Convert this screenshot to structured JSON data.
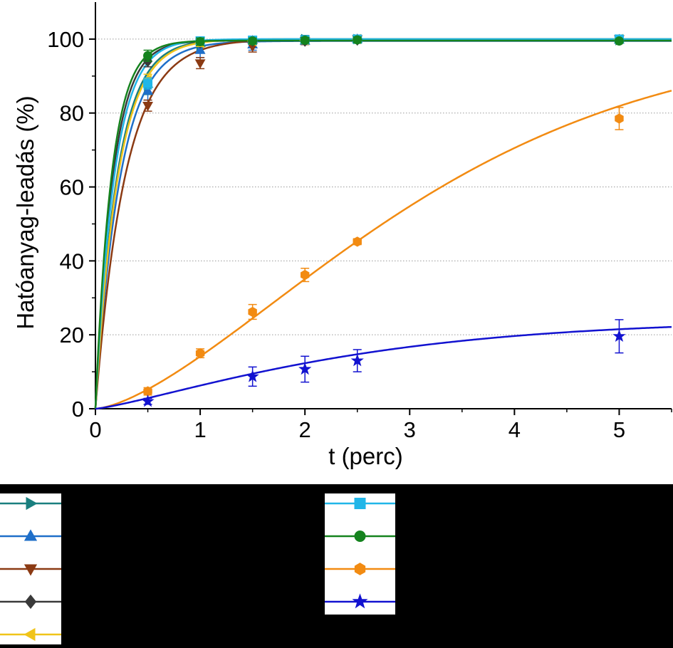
{
  "chart_data": {
    "type": "line",
    "title": "",
    "xlabel": "t (perc)",
    "ylabel": "Hatóanyag-leadás (%)",
    "xlim": [
      0,
      5.5
    ],
    "ylim": [
      0,
      110
    ],
    "xticks": [
      "0",
      "1",
      "2",
      "3",
      "4",
      "5"
    ],
    "yticks": [
      "0",
      "20",
      "40",
      "60",
      "80",
      "100"
    ],
    "grid": "horizontal dotted",
    "legend_placement": "below plot, two columns, labels not shown",
    "x": [
      0,
      0.5,
      1,
      1.5,
      2,
      2.5,
      5
    ],
    "series": [
      {
        "color": "#1a7f7f",
        "marker": "triangle-right",
        "values": [
          0,
          87,
          98,
          99.5,
          100,
          100,
          99.7
        ],
        "err": [
          0,
          2,
          1.5,
          1,
          1,
          0.8,
          0.5
        ]
      },
      {
        "color": "#1f6fc9",
        "marker": "triangle-up",
        "values": [
          0,
          86,
          97,
          98.5,
          99.5,
          100,
          99.8
        ],
        "err": [
          0,
          2.5,
          2,
          1.5,
          1,
          0.8,
          0.5
        ]
      },
      {
        "color": "#8b3a13",
        "marker": "triangle-down",
        "values": [
          0,
          82,
          93.5,
          98,
          99.5,
          100,
          100
        ],
        "err": [
          0,
          1.5,
          1.5,
          1.5,
          1,
          0.8,
          0.5
        ]
      },
      {
        "color": "#3a3a3a",
        "marker": "diamond",
        "values": [
          0,
          94,
          99,
          99.5,
          99.5,
          99.8,
          99.8
        ],
        "err": [
          0,
          1.5,
          1,
          0.8,
          0.8,
          0.8,
          0.5
        ]
      },
      {
        "color": "#f0c419",
        "marker": "triangle-left",
        "values": [
          0,
          89,
          99,
          99.5,
          99.7,
          100,
          100
        ],
        "err": [
          0,
          1.5,
          1,
          0.8,
          0.8,
          0.8,
          0.5
        ]
      },
      {
        "color": "#21b6e8",
        "marker": "square",
        "values": [
          0,
          88,
          99.5,
          99.7,
          99.8,
          100,
          100
        ],
        "err": [
          0,
          1.5,
          1,
          0.8,
          0.8,
          0.8,
          0.5
        ]
      },
      {
        "color": "#15831e",
        "marker": "circle",
        "values": [
          0,
          95.5,
          99.3,
          99.5,
          99.7,
          99.8,
          99.5
        ],
        "err": [
          0,
          1.5,
          1,
          0.8,
          0.8,
          0.8,
          0.5
        ]
      },
      {
        "color": "#f28b12",
        "marker": "hexagon",
        "values": [
          0,
          4.7,
          15,
          26.2,
          36.2,
          45.2,
          78.5
        ],
        "err": [
          0,
          1,
          1.2,
          2,
          1.8,
          0.8,
          3
        ]
      },
      {
        "color": "#1212d0",
        "marker": "star",
        "values": [
          0,
          2,
          null,
          8.7,
          10.7,
          13,
          19.6
        ],
        "err": [
          0,
          0.8,
          0,
          2.6,
          3.5,
          3,
          4.5
        ]
      }
    ],
    "fitted_curves": [
      {
        "series_index": 0,
        "kind": "exp",
        "plateau": 100,
        "rate": 4.8
      },
      {
        "series_index": 1,
        "kind": "exp",
        "plateau": 99.5,
        "rate": 4.2
      },
      {
        "series_index": 2,
        "kind": "exp",
        "plateau": 100,
        "rate": 3.5
      },
      {
        "series_index": 3,
        "kind": "exp",
        "plateau": 99.6,
        "rate": 6.0
      },
      {
        "series_index": 4,
        "kind": "exp",
        "plateau": 100,
        "rate": 4.6
      },
      {
        "series_index": 5,
        "kind": "exp",
        "plateau": 100,
        "rate": 5.5
      },
      {
        "series_index": 6,
        "kind": "exp",
        "plateau": 99.6,
        "rate": 6.5
      },
      {
        "series_index": 7,
        "kind": "weibull",
        "plateau": 100,
        "scale": 3.5,
        "shape": 1.5
      },
      {
        "series_index": 8,
        "kind": "weibull",
        "plateau": 24,
        "scale": 2.6,
        "shape": 1.25
      }
    ]
  }
}
